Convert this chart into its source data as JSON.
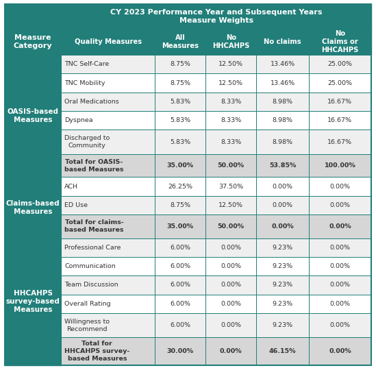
{
  "title_line1": "CY 2023 Performance Year and Subsequent Years",
  "title_line2": "Measure Weights",
  "header_bg": "#217e79",
  "header_text_color": "#ffffff",
  "border_color": "#217e79",
  "data_bg_light": "#efefef",
  "data_bg_white": "#ffffff",
  "total_row_bg": "#d6d6d6",
  "text_color": "#333333",
  "col_headers": [
    "Quality Measures",
    "All\nMeasures",
    "No\nHHCAHPS",
    "No claims",
    "No\nClaims or\nHHCAHPS"
  ],
  "measure_category_label": "Measure\nCategory",
  "fig_width": 5.49,
  "fig_height": 5.37,
  "dpi": 100,
  "categories": [
    {
      "name": "OASIS-based\nMeasures",
      "rows": [
        {
          "measure": "TNC Self-Care",
          "vals": [
            "8.75%",
            "12.50%",
            "13.46%",
            "25.00%"
          ],
          "alt": true,
          "bold": false
        },
        {
          "measure": "TNC Mobility",
          "vals": [
            "8.75%",
            "12.50%",
            "13.46%",
            "25.00%"
          ],
          "alt": false,
          "bold": false
        },
        {
          "measure": "Oral Medications",
          "vals": [
            "5.83%",
            "8.33%",
            "8.98%",
            "16.67%"
          ],
          "alt": true,
          "bold": false
        },
        {
          "measure": "Dyspnea",
          "vals": [
            "5.83%",
            "8.33%",
            "8.98%",
            "16.67%"
          ],
          "alt": false,
          "bold": false
        },
        {
          "measure": "Discharged to\nCommunity",
          "vals": [
            "5.83%",
            "8.33%",
            "8.98%",
            "16.67%"
          ],
          "alt": true,
          "bold": false
        },
        {
          "measure": "Total for OASIS-\nbased Measures",
          "vals": [
            "35.00%",
            "50.00%",
            "53.85%",
            "100.00%"
          ],
          "alt": false,
          "bold": true,
          "total": true
        }
      ]
    },
    {
      "name": "Claims-based\nMeasures",
      "rows": [
        {
          "measure": "ACH",
          "vals": [
            "26.25%",
            "37.50%",
            "0.00%",
            "0.00%"
          ],
          "alt": false,
          "bold": false
        },
        {
          "measure": "ED Use",
          "vals": [
            "8.75%",
            "12.50%",
            "0.00%",
            "0.00%"
          ],
          "alt": true,
          "bold": false
        },
        {
          "measure": "Total for claims-\nbased Measures",
          "vals": [
            "35.00%",
            "50.00%",
            "0.00%",
            "0.00%"
          ],
          "alt": false,
          "bold": true,
          "total": true
        }
      ]
    },
    {
      "name": "HHCAHPS\nsurvey-based\nMeasures",
      "rows": [
        {
          "measure": "Professional Care",
          "vals": [
            "6.00%",
            "0.00%",
            "9.23%",
            "0.00%"
          ],
          "alt": true,
          "bold": false
        },
        {
          "measure": "Communication",
          "vals": [
            "6.00%",
            "0.00%",
            "9.23%",
            "0.00%"
          ],
          "alt": false,
          "bold": false
        },
        {
          "measure": "Team Discussion",
          "vals": [
            "6.00%",
            "0.00%",
            "9.23%",
            "0.00%"
          ],
          "alt": true,
          "bold": false
        },
        {
          "measure": "Overall Rating",
          "vals": [
            "6.00%",
            "0.00%",
            "9.23%",
            "0.00%"
          ],
          "alt": false,
          "bold": false
        },
        {
          "measure": "Willingness to\nRecommend",
          "vals": [
            "6.00%",
            "0.00%",
            "9.23%",
            "0.00%"
          ],
          "alt": true,
          "bold": false
        },
        {
          "measure": "Total for\nHHCAHPS survey-\nbased Measures",
          "vals": [
            "30.00%",
            "0.00%",
            "46.15%",
            "0.00%"
          ],
          "alt": false,
          "bold": true,
          "total": true
        }
      ]
    }
  ]
}
